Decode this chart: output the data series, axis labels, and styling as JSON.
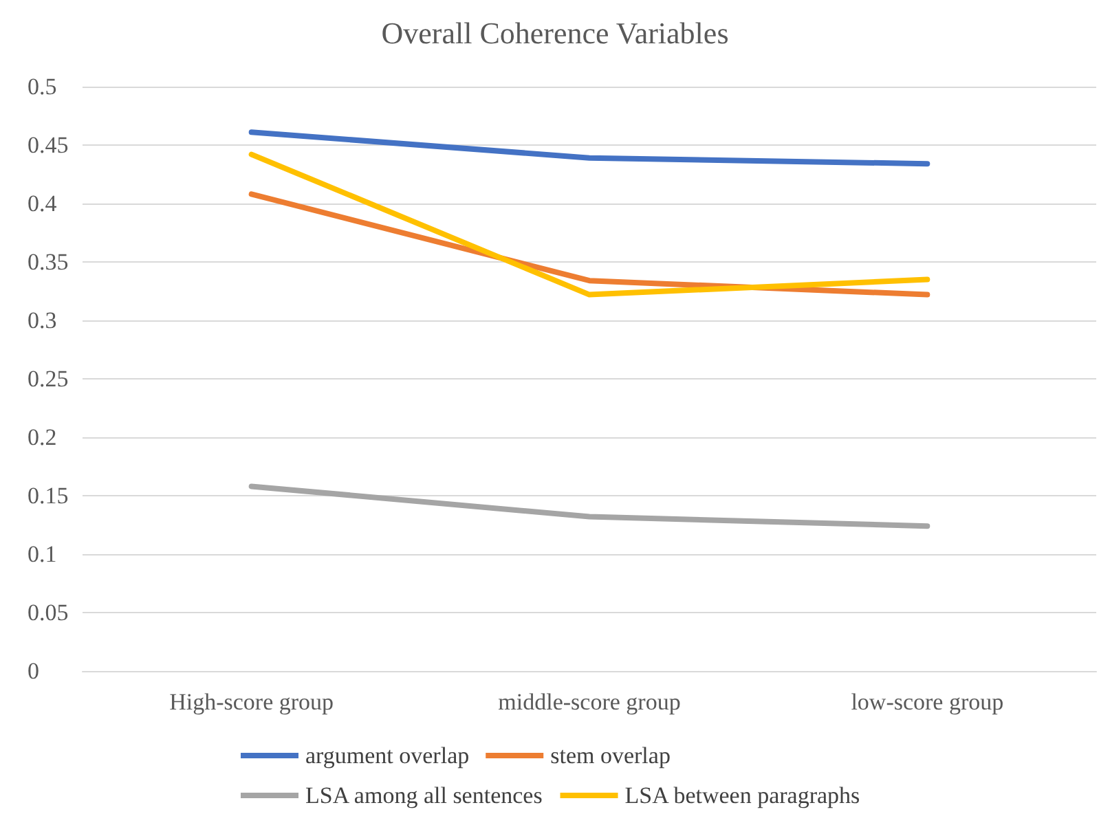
{
  "chart_data": {
    "type": "line",
    "title": "Overall Coherence Variables",
    "categories": [
      "High-score group",
      "middle-score group",
      "low-score group"
    ],
    "series": [
      {
        "name": "argument overlap",
        "color": "#4472c4",
        "values": [
          0.461,
          0.439,
          0.434
        ]
      },
      {
        "name": "stem overlap",
        "color": "#ed7d31",
        "values": [
          0.408,
          0.334,
          0.322
        ]
      },
      {
        "name": "LSA among all sentences",
        "color": "#a5a5a5",
        "values": [
          0.158,
          0.132,
          0.124
        ]
      },
      {
        "name": "LSA between paragraphs",
        "color": "#ffc000",
        "values": [
          0.442,
          0.322,
          0.335
        ]
      }
    ],
    "ylim": [
      0,
      0.5
    ],
    "yticks": [
      0,
      0.05,
      0.1,
      0.15,
      0.2,
      0.25,
      0.3,
      0.35,
      0.4,
      0.45,
      0.5
    ],
    "grid": "y",
    "legend": "bottom",
    "marker": "none",
    "line_style": "solid"
  }
}
